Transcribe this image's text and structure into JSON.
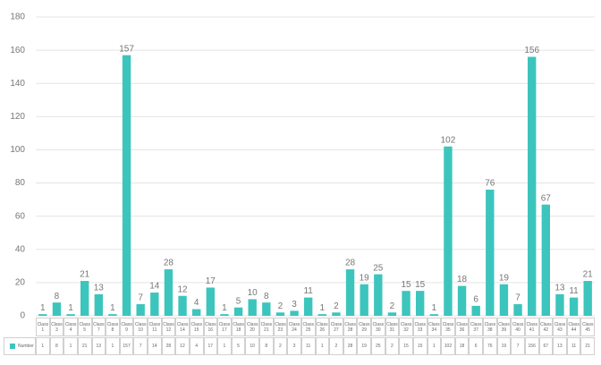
{
  "chart_data": {
    "type": "bar",
    "categories": [
      "Class 1",
      "Class 3",
      "Class 4",
      "Class 5",
      "Class 7",
      "Class 8",
      "Class 9",
      "Class 10",
      "Class 11",
      "Class 12",
      "Class 14",
      "Class 15",
      "Class 16",
      "Class 17",
      "Class 18",
      "Class 20",
      "Class 21",
      "Class 23",
      "Class 24",
      "Class 25",
      "Class 26",
      "Class 27",
      "Class 28",
      "Class 29",
      "Class 30",
      "Class 31",
      "Class 32",
      "Class 33",
      "Class 34",
      "Class 35",
      "Class 36",
      "Class 37",
      "Class 38",
      "Class 39",
      "Class 40",
      "Class 41",
      "Class 42",
      "Class 43",
      "Class 44",
      "Class 45"
    ],
    "series": [
      {
        "name": "Number",
        "color": "#3cc5bd",
        "values": [
          1,
          8,
          1,
          21,
          13,
          1,
          157,
          7,
          14,
          28,
          12,
          4,
          17,
          1,
          5,
          10,
          8,
          2,
          3,
          11,
          1,
          2,
          28,
          19,
          25,
          2,
          15,
          15,
          1,
          102,
          18,
          6,
          76,
          19,
          7,
          156,
          67,
          13,
          11,
          21
        ]
      }
    ],
    "ylim": [
      0,
      180
    ],
    "yticks": [
      0,
      20,
      40,
      60,
      80,
      100,
      120,
      140,
      160,
      180
    ],
    "grid": true,
    "data_table": true
  }
}
